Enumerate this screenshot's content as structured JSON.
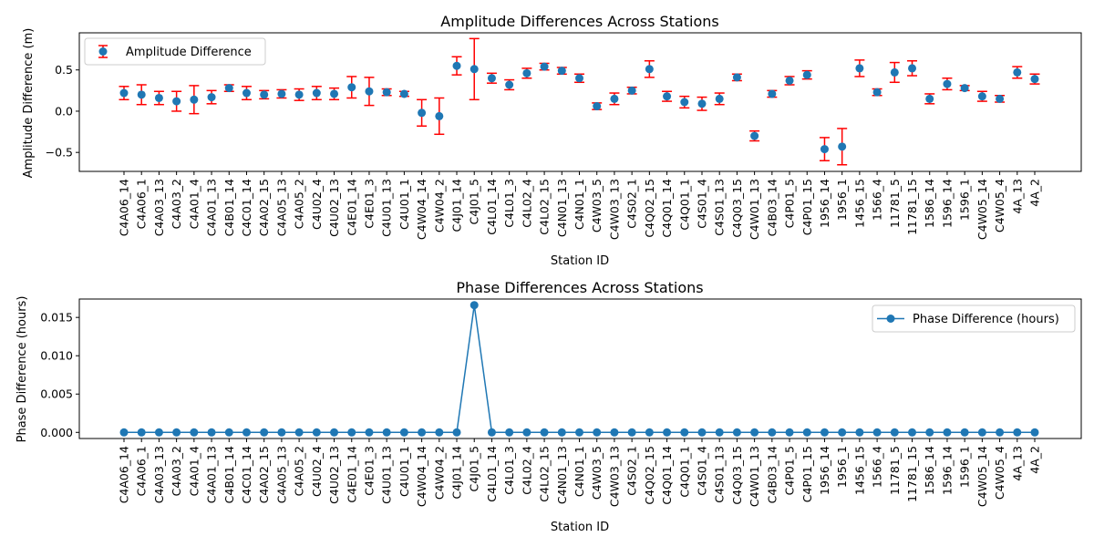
{
  "chart_data": [
    {
      "type": "scatter",
      "title": "Amplitude Differences Across Stations",
      "xlabel": "Station ID",
      "ylabel": "Amplitude Difference (m)",
      "ylim": [
        -0.73,
        0.95
      ],
      "yticks": [
        -0.5,
        0.0,
        0.5
      ],
      "ytick_labels": [
        "−0.5",
        "0.0",
        "0.5"
      ],
      "grid": false,
      "legend_position": "top-left",
      "series": [
        {
          "name": "Amplitude Difference",
          "marker_color": "#1f77b4",
          "errorbar_color": "#ff0000",
          "values": [
            0.22,
            0.2,
            0.16,
            0.12,
            0.14,
            0.17,
            0.28,
            0.22,
            0.2,
            0.21,
            0.2,
            0.22,
            0.21,
            0.29,
            0.24,
            0.23,
            0.21,
            -0.02,
            -0.06,
            0.55,
            0.51,
            0.4,
            0.32,
            0.46,
            0.54,
            0.49,
            0.4,
            0.06,
            0.15,
            0.25,
            0.51,
            0.18,
            0.11,
            0.09,
            0.15,
            0.41,
            -0.3,
            0.21,
            0.37,
            0.44,
            -0.46,
            -0.43,
            0.52,
            0.23,
            0.47,
            0.52,
            0.15,
            0.33,
            0.28,
            0.18,
            0.15,
            0.47,
            0.39
          ],
          "errors": [
            0.08,
            0.12,
            0.08,
            0.12,
            0.17,
            0.08,
            0.04,
            0.08,
            0.05,
            0.05,
            0.07,
            0.08,
            0.07,
            0.13,
            0.17,
            0.04,
            0.03,
            0.16,
            0.22,
            0.11,
            0.37,
            0.06,
            0.06,
            0.06,
            0.04,
            0.04,
            0.05,
            0.04,
            0.07,
            0.04,
            0.1,
            0.06,
            0.07,
            0.08,
            0.07,
            0.04,
            0.06,
            0.04,
            0.05,
            0.05,
            0.14,
            0.22,
            0.1,
            0.04,
            0.12,
            0.09,
            0.06,
            0.07,
            0.03,
            0.06,
            0.04,
            0.07,
            0.06
          ]
        }
      ]
    },
    {
      "type": "line",
      "title": "Phase Differences Across Stations",
      "xlabel": "Station ID",
      "ylabel": "Phase Difference (hours)",
      "ylim": [
        -0.0008,
        0.0174
      ],
      "yticks": [
        0.0,
        0.005,
        0.01,
        0.015
      ],
      "ytick_labels": [
        "0.000",
        "0.005",
        "0.010",
        "0.015"
      ],
      "grid": false,
      "legend_position": "top-right",
      "series": [
        {
          "name": "Phase Difference (hours)",
          "color": "#1f77b4",
          "values": [
            0,
            0,
            0,
            0,
            0,
            0,
            0,
            0,
            0,
            0,
            0,
            0,
            0,
            0,
            0,
            0,
            0,
            0,
            0,
            0,
            0.0166,
            0,
            0,
            0,
            0,
            0,
            0,
            0,
            0,
            0,
            0,
            0,
            0,
            0,
            0,
            0,
            0,
            0,
            0,
            0,
            0,
            0,
            0,
            0,
            0,
            0,
            0,
            0,
            0,
            0,
            0,
            0,
            0
          ]
        }
      ]
    }
  ],
  "categories": [
    "C4A06_14",
    "C4A06_1",
    "C4A03_13",
    "C4A03_2",
    "C4A01_4",
    "C4A01_13",
    "C4B01_14",
    "C4C01_14",
    "C4A02_15",
    "C4A05_13",
    "C4A05_2",
    "C4U02_4",
    "C4U02_13",
    "C4E01_14",
    "C4E01_3",
    "C4U01_13",
    "C4U01_1",
    "C4W04_14",
    "C4W04_2",
    "C4J01_14",
    "C4J01_5",
    "C4L01_14",
    "C4L01_3",
    "C4L02_4",
    "C4L02_15",
    "C4N01_13",
    "C4N01_1",
    "C4W03_5",
    "C4W03_13",
    "C4S02_1",
    "C4Q02_15",
    "C4Q01_14",
    "C4Q01_1",
    "C4S01_4",
    "C4S01_13",
    "C4Q03_15",
    "C4W01_13",
    "C4B03_14",
    "C4P01_5",
    "C4P01_15",
    "1956_14",
    "1956_1",
    "1456_15",
    "1566_4",
    "11781_5",
    "11781_15",
    "1586_14",
    "1596_14",
    "1596_1",
    "C4W05_14",
    "C4W05_4",
    "4A_13",
    "4A_2"
  ]
}
